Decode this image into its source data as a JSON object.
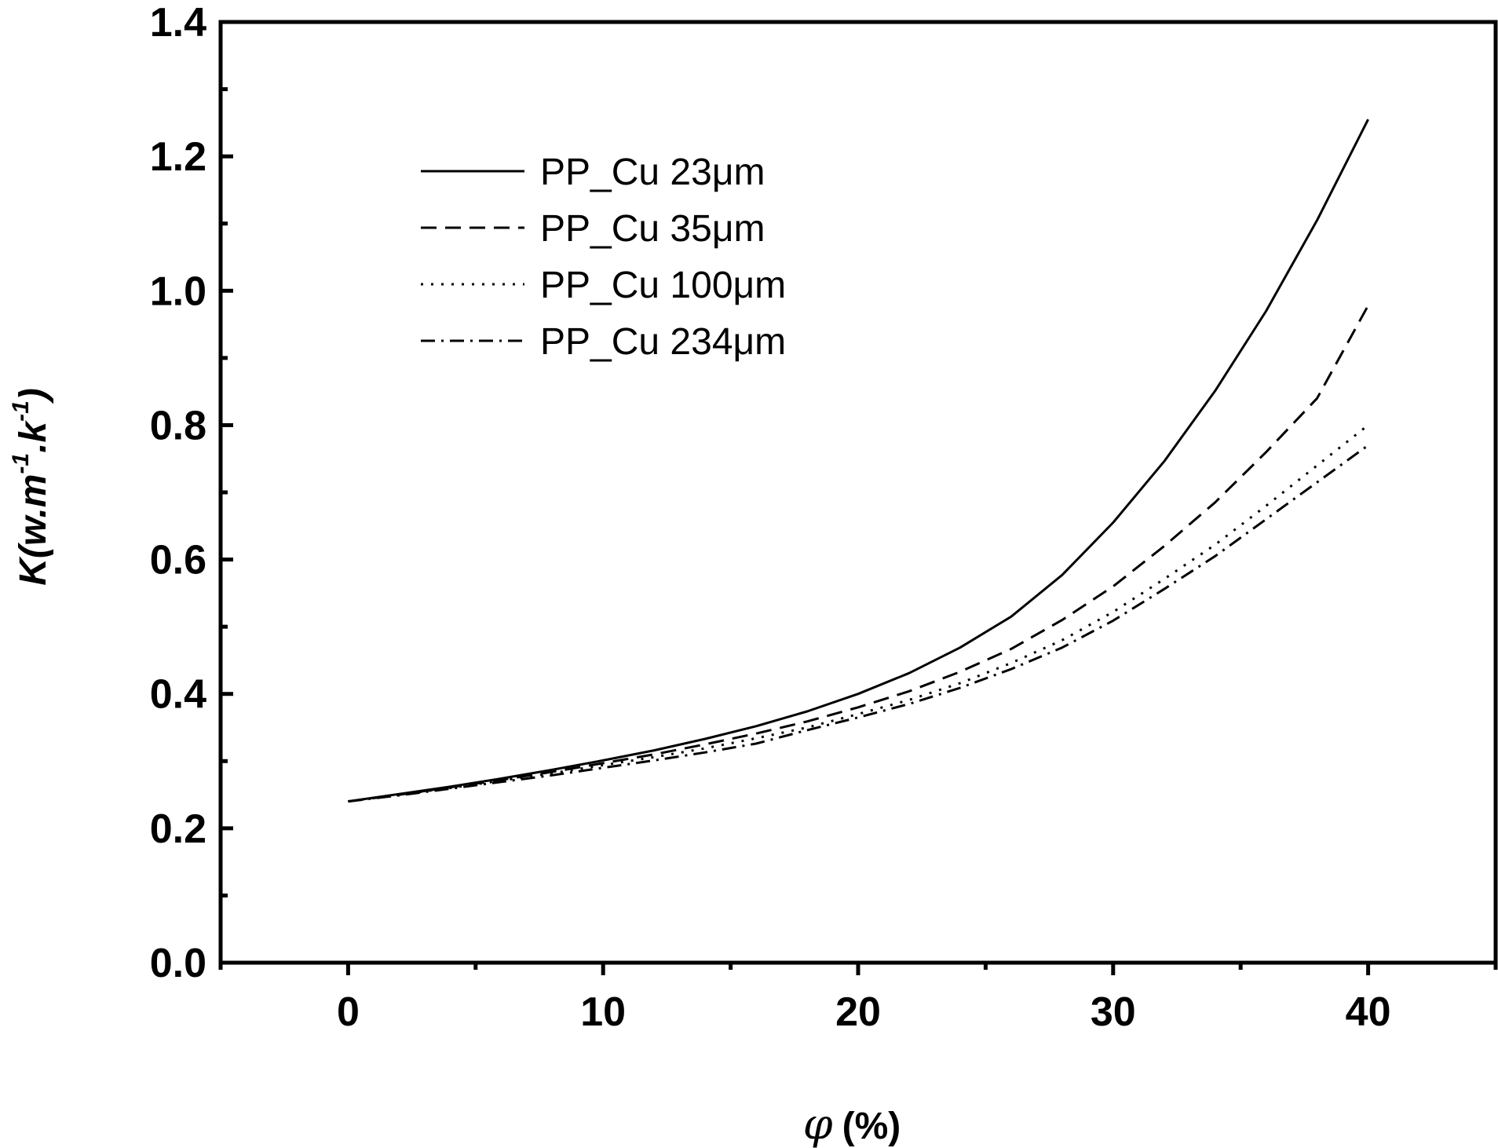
{
  "chart_data": {
    "type": "line",
    "title": "",
    "xlabel_symbol": "φ",
    "xlabel_unit": "(%)",
    "ylabel_main": "K(w.m",
    "ylabel_sup1": "-1",
    "ylabel_mid": ".k",
    "ylabel_sup2": "-1",
    "ylabel_end": ")",
    "xlim": [
      -5,
      45
    ],
    "ylim": [
      0.0,
      1.4
    ],
    "x_major_ticks": [
      0,
      10,
      20,
      30,
      40
    ],
    "x_tick_labels": [
      "0",
      "10",
      "20",
      "30",
      "40"
    ],
    "x_minor_ticks": [
      -5,
      5,
      15,
      25,
      35,
      45
    ],
    "y_major_ticks": [
      0.0,
      0.2,
      0.4,
      0.6,
      0.8,
      1.0,
      1.2,
      1.4
    ],
    "y_tick_labels": [
      "0.0",
      "0.2",
      "0.4",
      "0.6",
      "0.8",
      "1.0",
      "1.2",
      "1.4"
    ],
    "y_minor_ticks": [
      0.1,
      0.3,
      0.5,
      0.7,
      0.9,
      1.1,
      1.3
    ],
    "grid": false,
    "legend_position": "top-left",
    "x": [
      0,
      2,
      4,
      6,
      8,
      10,
      12,
      14,
      16,
      18,
      20,
      22,
      24,
      26,
      28,
      30,
      32,
      34,
      36,
      38,
      40
    ],
    "series": [
      {
        "name": "PP_Cu 23μm",
        "dash": "solid",
        "values": [
          0.24,
          0.251,
          0.262,
          0.274,
          0.287,
          0.301,
          0.316,
          0.333,
          0.352,
          0.374,
          0.4,
          0.431,
          0.469,
          0.515,
          0.577,
          0.655,
          0.746,
          0.851,
          0.97,
          1.105,
          1.255
        ]
      },
      {
        "name": "PP_Cu 35μm",
        "dash": "dash",
        "values": [
          0.24,
          0.25,
          0.261,
          0.272,
          0.284,
          0.297,
          0.31,
          0.325,
          0.341,
          0.359,
          0.38,
          0.404,
          0.433,
          0.467,
          0.51,
          0.56,
          0.62,
          0.685,
          0.76,
          0.84,
          0.978
        ]
      },
      {
        "name": "PP_Cu 100μm",
        "dash": "dot",
        "values": [
          0.24,
          0.25,
          0.26,
          0.271,
          0.282,
          0.294,
          0.306,
          0.319,
          0.334,
          0.35,
          0.37,
          0.391,
          0.416,
          0.446,
          0.48,
          0.522,
          0.571,
          0.622,
          0.68,
          0.74,
          0.8
        ]
      },
      {
        "name": "PP_Cu 234μm",
        "dash": "dashdot",
        "values": [
          0.24,
          0.249,
          0.259,
          0.269,
          0.279,
          0.29,
          0.301,
          0.313,
          0.326,
          0.346,
          0.365,
          0.385,
          0.409,
          0.437,
          0.469,
          0.509,
          0.556,
          0.605,
          0.66,
          0.715,
          0.77
        ]
      }
    ]
  }
}
